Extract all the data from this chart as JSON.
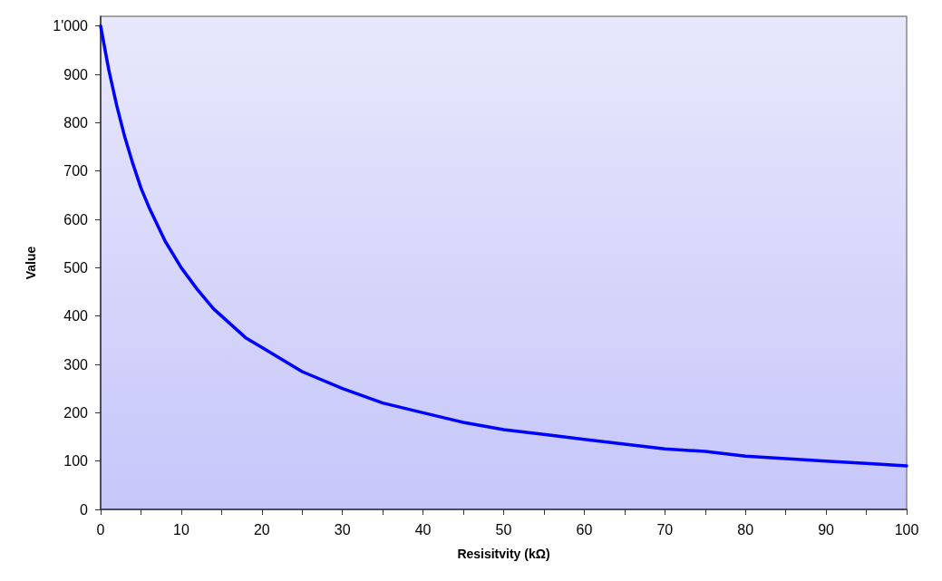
{
  "chart_data": {
    "type": "line",
    "xlabel": "Resisitvity (kΩ)",
    "ylabel": "Value",
    "x": [
      0,
      1,
      2,
      3,
      4,
      5,
      6,
      8,
      10,
      12,
      14,
      16,
      18,
      20,
      25,
      30,
      35,
      40,
      45,
      50,
      55,
      60,
      65,
      70,
      75,
      80,
      85,
      90,
      95,
      100
    ],
    "series": [
      {
        "color": "#0000ff",
        "values": [
          1000,
          910,
          835,
          770,
          715,
          665,
          625,
          555,
          500,
          455,
          415,
          385,
          355,
          335,
          285,
          250,
          220,
          200,
          180,
          165,
          155,
          145,
          135,
          125,
          120,
          110,
          105,
          100,
          95,
          90
        ]
      }
    ],
    "xlim": [
      0,
      100
    ],
    "xticks": [
      0,
      {
        "value": 5,
        "label": null
      },
      10,
      {
        "value": 15,
        "label": null
      },
      20,
      {
        "value": 25,
        "label": null
      },
      30,
      {
        "value": 35,
        "label": null
      },
      40,
      {
        "value": 45,
        "label": null
      },
      50,
      {
        "value": 55,
        "label": null
      },
      60,
      {
        "value": 65,
        "label": null
      },
      70,
      {
        "value": 75,
        "label": null
      },
      80,
      {
        "value": 85,
        "label": null
      },
      90,
      {
        "value": 95,
        "label": null
      },
      100
    ],
    "ylim": [
      0,
      1020
    ],
    "yticks": [
      0,
      100,
      200,
      300,
      400,
      500,
      600,
      700,
      800,
      900,
      {
        "value": 1000,
        "label": "1'000"
      }
    ],
    "grid": false,
    "marker": "none",
    "line_style": "solid"
  }
}
